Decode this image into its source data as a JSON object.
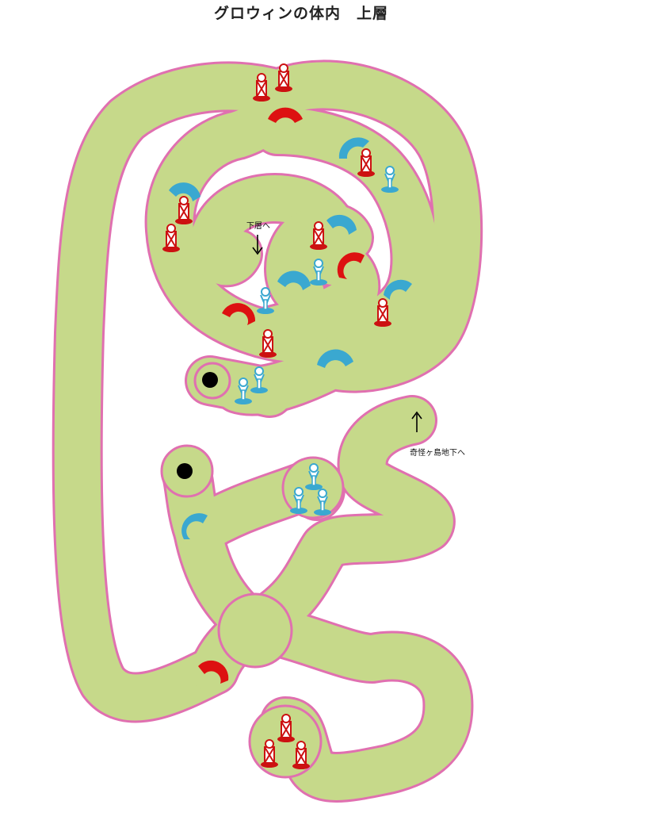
{
  "title": "グロウィンの体内　上層",
  "labels": {
    "down_stairs": "下層へ",
    "up_stairs": "奇怪ヶ島地下へ"
  },
  "colors": {
    "path_fill": "#c6d98a",
    "path_border": "#e070b0",
    "red_door": "#dd1111",
    "blue_door": "#3aa8d0",
    "red_chest": "#cc1111",
    "blue_chest": "#3aa8d0",
    "hole": "#000000"
  },
  "legend": {
    "red_door_icon": "red-door-arc-icon",
    "blue_door_icon": "blue-door-arc-icon",
    "red_treasure_icon": "red-treasure-chest-icon",
    "blue_treasure_icon": "blue-treasure-chest-icon",
    "hole_icon": "black-hole-icon"
  }
}
